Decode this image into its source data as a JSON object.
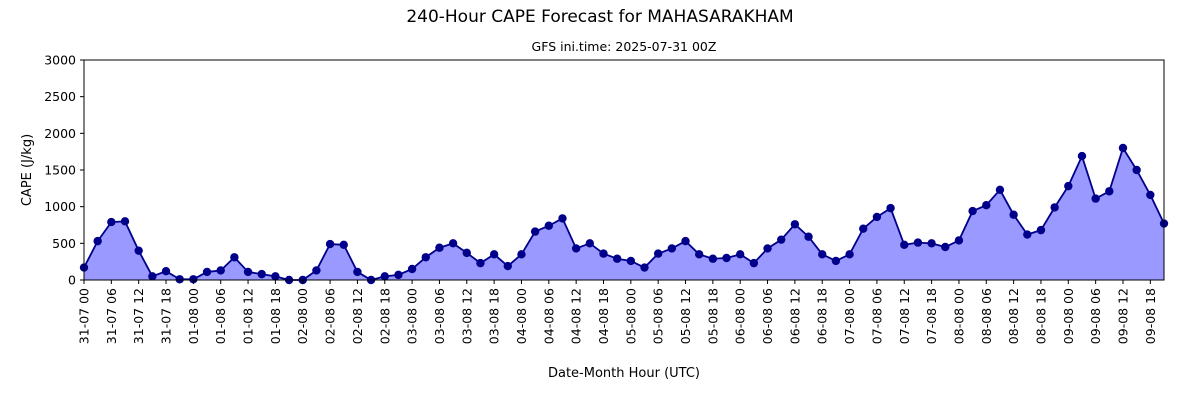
{
  "chart_data": {
    "type": "area",
    "title": "240-Hour CAPE Forecast for MAHASARAKHAM",
    "subtitle": "GFS ini.time: 2025-07-31 00Z",
    "xlabel": "Date-Month Hour (UTC)",
    "ylabel": "CAPE (J/kg)",
    "ylim": [
      0,
      3000
    ],
    "yticks": [
      0,
      500,
      1000,
      1500,
      2000,
      2500,
      3000
    ],
    "x_step_hours": 3,
    "x_tick_every_hours": 6,
    "x_tick_labels": [
      "31-07 00",
      "31-07 06",
      "31-07 12",
      "31-07 18",
      "01-08 00",
      "01-08 06",
      "01-08 12",
      "01-08 18",
      "02-08 00",
      "02-08 06",
      "02-08 12",
      "02-08 18",
      "03-08 00",
      "03-08 06",
      "03-08 12",
      "03-08 18",
      "04-08 00",
      "04-08 06",
      "04-08 12",
      "04-08 18",
      "05-08 00",
      "05-08 06",
      "05-08 12",
      "05-08 18",
      "06-08 00",
      "06-08 06",
      "06-08 12",
      "06-08 18",
      "07-08 00",
      "07-08 06",
      "07-08 12",
      "07-08 18",
      "08-08 00",
      "08-08 06",
      "08-08 12",
      "08-08 18",
      "09-08 00",
      "09-08 06",
      "09-08 12",
      "09-08 18"
    ],
    "grid": false,
    "colors": {
      "line": "#00008b",
      "fill": "#9999ff"
    },
    "series": [
      {
        "values": [
          170,
          530,
          790,
          800,
          400,
          50,
          120,
          10,
          10,
          110,
          130,
          310,
          110,
          80,
          50,
          0,
          0,
          130,
          490,
          480,
          110,
          0,
          50,
          70,
          150,
          310,
          440,
          500,
          370,
          230,
          350,
          190,
          350,
          660,
          740,
          840,
          430,
          500,
          360,
          290,
          260,
          170,
          360,
          430,
          530,
          350,
          290,
          300,
          350,
          230,
          430,
          550,
          760,
          590,
          350,
          260,
          350,
          700,
          860,
          980,
          480,
          510,
          500,
          450,
          540,
          940,
          1020,
          1230,
          890,
          620,
          680,
          990,
          1280,
          1690,
          1110,
          1210,
          1800,
          1500,
          1160,
          770
        ]
      }
    ]
  }
}
